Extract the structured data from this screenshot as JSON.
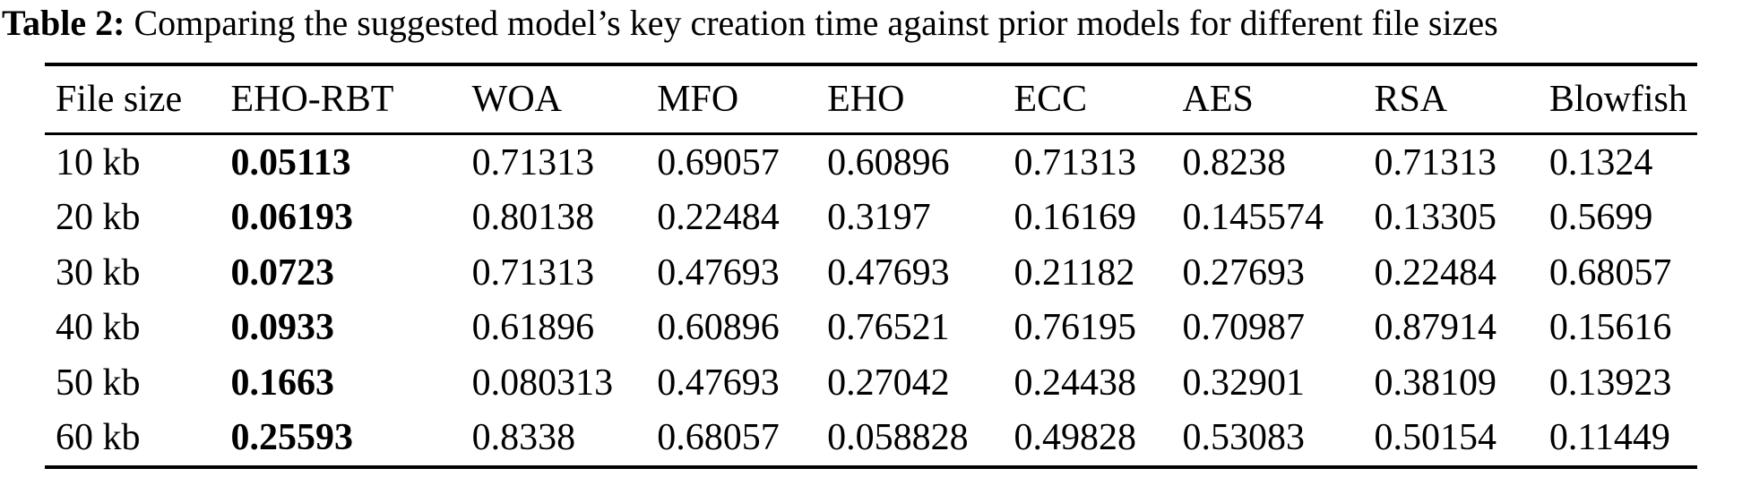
{
  "caption": {
    "label": "Table 2:",
    "text": "Comparing the suggested model’s key creation time against prior models for different file sizes"
  },
  "table": {
    "columns": [
      "File size",
      "EHO-RBT",
      "WOA",
      "MFO",
      "EHO",
      "ECC",
      "AES",
      "RSA",
      "Blowfish"
    ],
    "emphasis_column_index": 1,
    "rows": [
      [
        "10 kb",
        "0.05113",
        "0.71313",
        "0.69057",
        "0.60896",
        "0.71313",
        "0.8238",
        "0.71313",
        "0.1324"
      ],
      [
        "20 kb",
        "0.06193",
        "0.80138",
        "0.22484",
        "0.3197",
        "0.16169",
        "0.145574",
        "0.13305",
        "0.5699"
      ],
      [
        "30 kb",
        "0.0723",
        "0.71313",
        "0.47693",
        "0.47693",
        "0.21182",
        "0.27693",
        "0.22484",
        "0.68057"
      ],
      [
        "40 kb",
        "0.0933",
        "0.61896",
        "0.60896",
        "0.76521",
        "0.76195",
        "0.70987",
        "0.87914",
        "0.15616"
      ],
      [
        "50 kb",
        "0.1663",
        "0.080313",
        "0.47693",
        "0.27042",
        "0.24438",
        "0.32901",
        "0.38109",
        "0.13923"
      ],
      [
        "60 kb",
        "0.25593",
        "0.8338",
        "0.68057",
        "0.058828",
        "0.49828",
        "0.53083",
        "0.50154",
        "0.11449"
      ]
    ]
  },
  "colors": {
    "background": "#ffffff",
    "text": "#000000",
    "rule": "#000000"
  }
}
